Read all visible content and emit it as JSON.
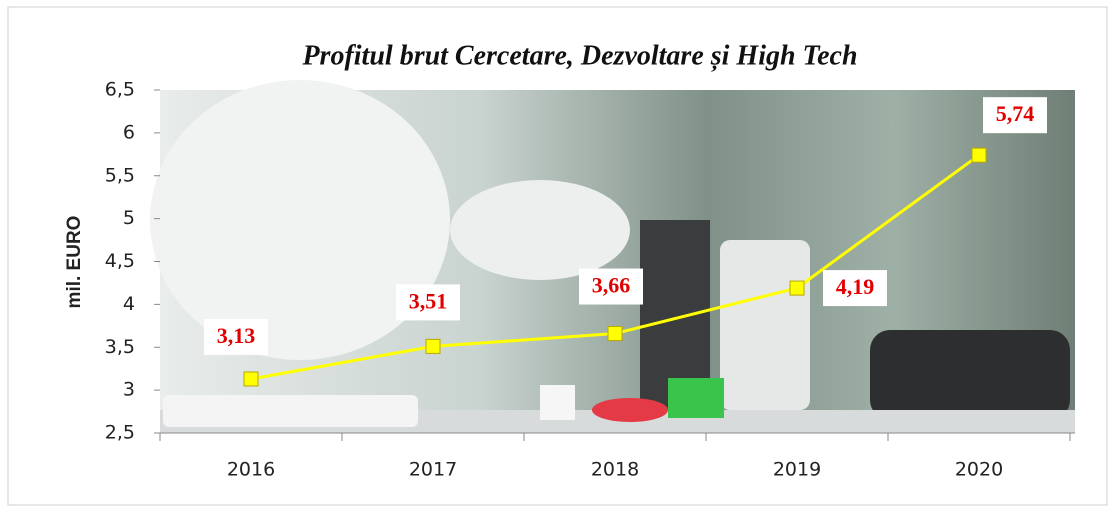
{
  "chart_data": {
    "type": "line",
    "title": "Profitul brut Cercetare, Dezvoltare și High Tech",
    "y_label": "mil. EURO",
    "categories": [
      "2016",
      "2017",
      "2018",
      "2019",
      "2020"
    ],
    "values": [
      3.13,
      3.51,
      3.66,
      4.19,
      5.74
    ],
    "value_labels": [
      "3,13",
      "3,51",
      "3,66",
      "4,19",
      "5,74"
    ],
    "color": "#ffff00",
    "ylim": [
      2.5,
      6.5
    ],
    "yticks": [
      {
        "value": 2.5,
        "label": "2,5"
      },
      3,
      {
        "value": 3.5,
        "label": "3,5"
      },
      4,
      {
        "value": 4.5,
        "label": "4,5"
      },
      5,
      {
        "value": 5.5,
        "label": "5,5"
      },
      6,
      {
        "value": 6.5,
        "label": "6,5"
      }
    ]
  }
}
